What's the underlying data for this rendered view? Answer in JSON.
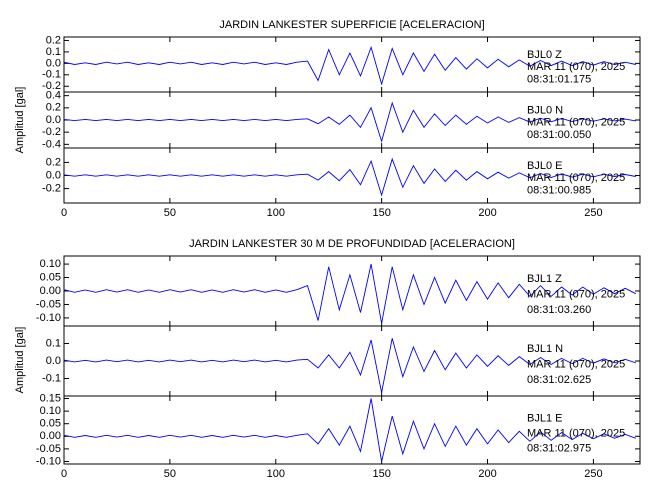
{
  "chart_data": [
    {
      "type": "line",
      "title": "JARDIN LANKESTER SUPERFICIE [ACELERACION]",
      "y_label": "Amplitud [gal]",
      "xlim": [
        0,
        272
      ],
      "xticks": [
        0,
        50,
        100,
        150,
        200,
        250
      ],
      "x": [
        0,
        5,
        10,
        15,
        20,
        25,
        30,
        35,
        40,
        45,
        50,
        55,
        60,
        65,
        70,
        75,
        80,
        85,
        90,
        95,
        100,
        105,
        110,
        115,
        120,
        125,
        130,
        135,
        140,
        145,
        150,
        155,
        160,
        165,
        170,
        175,
        180,
        185,
        190,
        195,
        200,
        205,
        210,
        215,
        220,
        225,
        230,
        235,
        240,
        245,
        250,
        255,
        260,
        265,
        270
      ],
      "panels": [
        {
          "station": "BJL0  Z",
          "date": "MAR 11 (070), 2025",
          "time": "08:31:01.175",
          "color": "#0000ff",
          "ylim": [
            -0.25,
            0.23
          ],
          "yticks": [
            0.2,
            0.1,
            {
              "value": 0,
              "label": "0.0"
            },
            -0.1,
            -0.2
          ],
          "values": [
            0.01,
            -0.01,
            0.005,
            -0.01,
            0.01,
            -0.005,
            0.01,
            -0.01,
            0.005,
            -0.01,
            0.01,
            -0.005,
            0.01,
            -0.01,
            0.005,
            -0.01,
            0.01,
            -0.005,
            0.01,
            -0.01,
            0.005,
            -0.01,
            0.01,
            0.02,
            -0.15,
            0.12,
            -0.1,
            0.09,
            -0.11,
            0.14,
            -0.18,
            0.13,
            -0.1,
            0.09,
            -0.07,
            0.08,
            -0.06,
            0.05,
            -0.05,
            0.04,
            -0.04,
            0.035,
            -0.03,
            0.03,
            -0.025,
            0.025,
            -0.02,
            0.02,
            -0.02,
            0.015,
            -0.015,
            0.015,
            -0.01,
            0.01,
            -0.01
          ]
        },
        {
          "station": "BJL0  N",
          "date": "MAR 11 (070), 2025",
          "time": "08:31:00.050",
          "color": "#0000ff",
          "ylim": [
            -0.46,
            0.46
          ],
          "yticks": [
            0.4,
            0.2,
            {
              "value": 0,
              "label": "0.0"
            },
            -0.2,
            -0.4
          ],
          "values": [
            0.01,
            -0.01,
            0.01,
            -0.01,
            0.01,
            -0.01,
            0.01,
            -0.01,
            0.01,
            -0.01,
            0.01,
            -0.01,
            0.01,
            -0.01,
            0.01,
            -0.01,
            0.01,
            -0.01,
            0.01,
            -0.01,
            0.01,
            -0.01,
            0.01,
            0.02,
            -0.06,
            0.05,
            -0.07,
            0.08,
            -0.12,
            0.2,
            -0.35,
            0.28,
            -0.2,
            0.16,
            -0.12,
            0.1,
            -0.09,
            0.08,
            -0.07,
            0.06,
            -0.05,
            0.05,
            -0.04,
            0.04,
            -0.035,
            0.03,
            -0.03,
            0.025,
            -0.025,
            0.02,
            -0.02,
            0.02,
            -0.015,
            0.015,
            -0.015
          ]
        },
        {
          "station": "BJL0  E",
          "date": "MAR 11 (070), 2025",
          "time": "08:31:00.985",
          "color": "#0000ff",
          "ylim": [
            -0.42,
            0.42
          ],
          "yticks": [
            0.2,
            {
              "value": 0,
              "label": "0.0"
            },
            -0.2
          ],
          "values": [
            0.01,
            -0.01,
            0.01,
            -0.01,
            0.01,
            -0.01,
            0.01,
            -0.01,
            0.01,
            -0.01,
            0.01,
            -0.01,
            0.01,
            -0.01,
            0.01,
            -0.01,
            0.01,
            -0.01,
            0.01,
            -0.01,
            0.01,
            -0.01,
            0.01,
            0.02,
            -0.07,
            0.06,
            -0.08,
            0.09,
            -0.14,
            0.22,
            -0.3,
            0.25,
            -0.18,
            0.15,
            -0.12,
            0.1,
            -0.09,
            0.08,
            -0.07,
            0.06,
            -0.05,
            0.05,
            -0.04,
            0.04,
            -0.035,
            0.03,
            -0.03,
            0.025,
            -0.025,
            0.02,
            -0.02,
            0.02,
            -0.015,
            0.015,
            -0.015
          ]
        }
      ]
    },
    {
      "type": "line",
      "title": "JARDIN LANKESTER 30 M DE PROFUNDIDAD [ACELERACION]",
      "y_label": "Amplitud [gal]",
      "xlim": [
        0,
        272
      ],
      "xticks": [
        0,
        50,
        100,
        150,
        200,
        250
      ],
      "x": [
        0,
        5,
        10,
        15,
        20,
        25,
        30,
        35,
        40,
        45,
        50,
        55,
        60,
        65,
        70,
        75,
        80,
        85,
        90,
        95,
        100,
        105,
        110,
        115,
        120,
        125,
        130,
        135,
        140,
        145,
        150,
        155,
        160,
        165,
        170,
        175,
        180,
        185,
        190,
        195,
        200,
        205,
        210,
        215,
        220,
        225,
        230,
        235,
        240,
        245,
        250,
        255,
        260,
        265,
        270
      ],
      "panels": [
        {
          "station": "BJL1   Z",
          "date": "MAR 11 (070), 2025",
          "time": "08:31:03.260",
          "color": "#0000ff",
          "ylim": [
            -0.13,
            0.13
          ],
          "yticks": [
            {
              "value": 0.1,
              "label": "0.10"
            },
            0.05,
            {
              "value": 0,
              "label": "0.00"
            },
            -0.05,
            {
              "value": -0.1,
              "label": "-0.10"
            }
          ],
          "values": [
            0.005,
            -0.005,
            0.004,
            -0.005,
            0.005,
            -0.004,
            0.005,
            -0.005,
            0.004,
            -0.005,
            0.005,
            -0.004,
            0.005,
            -0.005,
            0.004,
            -0.005,
            0.005,
            -0.004,
            0.005,
            -0.005,
            0.004,
            -0.005,
            0.005,
            0.02,
            -0.11,
            0.09,
            -0.07,
            0.06,
            -0.08,
            0.1,
            -0.12,
            0.09,
            -0.07,
            0.06,
            -0.05,
            0.05,
            -0.045,
            0.04,
            -0.035,
            0.035,
            -0.03,
            0.03,
            -0.025,
            0.025,
            -0.02,
            0.02,
            -0.02,
            0.015,
            -0.015,
            0.015,
            -0.012,
            0.012,
            -0.01,
            0.01,
            -0.01
          ]
        },
        {
          "station": "BJL1   N",
          "date": "MAR 11 (070), 2025",
          "time": "08:31:02.625",
          "color": "#0000ff",
          "ylim": [
            -0.2,
            0.2
          ],
          "yticks": [
            0.1,
            {
              "value": 0,
              "label": "0.0"
            },
            -0.1
          ],
          "values": [
            0.005,
            -0.005,
            0.004,
            -0.005,
            0.005,
            -0.004,
            0.005,
            -0.005,
            0.004,
            -0.005,
            0.005,
            -0.004,
            0.005,
            -0.005,
            0.004,
            -0.005,
            0.005,
            -0.004,
            0.005,
            -0.005,
            0.004,
            -0.005,
            0.005,
            0.01,
            -0.04,
            0.035,
            -0.04,
            0.05,
            -0.08,
            0.12,
            -0.18,
            0.13,
            -0.09,
            0.08,
            -0.06,
            0.06,
            -0.05,
            0.045,
            -0.04,
            0.035,
            -0.03,
            0.03,
            -0.025,
            0.025,
            -0.02,
            0.02,
            -0.02,
            0.015,
            -0.015,
            0.015,
            -0.012,
            0.012,
            -0.01,
            0.01,
            -0.01
          ]
        },
        {
          "station": "BJL1   E",
          "date": "MAR 11 (070), 2025",
          "time": "08:31:02.975",
          "color": "#0000ff",
          "ylim": [
            -0.11,
            0.16
          ],
          "yticks": [
            0.15,
            {
              "value": 0.1,
              "label": "0.10"
            },
            0.05,
            {
              "value": 0,
              "label": "0.00"
            },
            -0.05,
            {
              "value": -0.1,
              "label": "-0.10"
            }
          ],
          "values": [
            0.004,
            -0.004,
            0.003,
            -0.004,
            0.004,
            -0.003,
            0.004,
            -0.004,
            0.003,
            -0.004,
            0.004,
            -0.003,
            0.004,
            -0.004,
            0.003,
            -0.004,
            0.004,
            -0.003,
            0.004,
            -0.004,
            0.003,
            -0.004,
            0.004,
            0.01,
            -0.03,
            0.03,
            -0.035,
            0.04,
            -0.06,
            0.15,
            -0.1,
            0.08,
            -0.07,
            0.06,
            -0.05,
            0.05,
            -0.04,
            0.04,
            -0.035,
            0.03,
            -0.03,
            0.025,
            -0.025,
            0.02,
            -0.02,
            0.018,
            -0.016,
            0.015,
            -0.013,
            0.012,
            -0.01,
            0.01,
            -0.008,
            0.008,
            -0.008
          ]
        }
      ]
    }
  ]
}
